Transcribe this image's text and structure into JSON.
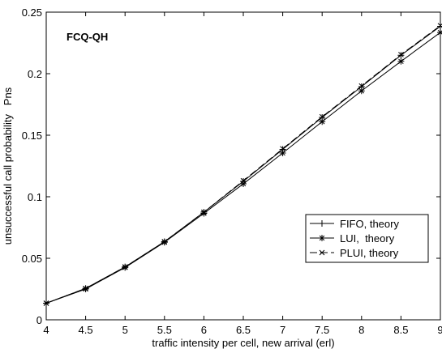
{
  "chart_data": {
    "type": "line",
    "title": "",
    "annotation": "FCQ-QH",
    "xlabel": "traffic intensity per cell, new arrival (erl)",
    "ylabel": "unsuccessful call probability   Pns",
    "xlim": [
      4,
      9
    ],
    "ylim": [
      0,
      0.25
    ],
    "xticks": [
      4,
      4.5,
      5,
      5.5,
      6,
      6.5,
      7,
      7.5,
      8,
      8.5,
      9
    ],
    "xtick_labels": [
      "4",
      "4.5",
      "5",
      "5.5",
      "6",
      "6.5",
      "7",
      "7.5",
      "8",
      "8.5",
      "9"
    ],
    "yticks": [
      0,
      0.05,
      0.1,
      0.15,
      0.2,
      0.25
    ],
    "ytick_labels": [
      "0",
      "0.05",
      "0.1",
      "0.15",
      "0.2",
      "0.25"
    ],
    "grid": false,
    "legend_position": "bottom-right",
    "series": [
      {
        "name": "FIFO, theory",
        "line_style": "solid",
        "marker": "plus",
        "x": [
          4,
          4.5,
          5,
          5.5,
          6,
          6.5,
          7,
          7.5,
          8,
          8.5,
          9
        ],
        "y": [
          0.0135,
          0.0255,
          0.043,
          0.0635,
          0.0875,
          0.1125,
          0.1385,
          0.1645,
          0.1895,
          0.215,
          0.2385
        ]
      },
      {
        "name": "LUI,  theory",
        "line_style": "solid",
        "marker": "asterisk",
        "x": [
          4,
          4.5,
          5,
          5.5,
          6,
          6.5,
          7,
          7.5,
          8,
          8.5,
          9
        ],
        "y": [
          0.0135,
          0.025,
          0.0425,
          0.063,
          0.0865,
          0.1105,
          0.1355,
          0.161,
          0.186,
          0.21,
          0.2335
        ]
      },
      {
        "name": "PLUI, theory",
        "line_style": "dashed",
        "marker": "x",
        "x": [
          4,
          4.5,
          5,
          5.5,
          6,
          6.5,
          7,
          7.5,
          8,
          8.5,
          9
        ],
        "y": [
          0.0135,
          0.0255,
          0.043,
          0.0635,
          0.0875,
          0.113,
          0.139,
          0.165,
          0.19,
          0.2155,
          0.239
        ]
      }
    ]
  }
}
